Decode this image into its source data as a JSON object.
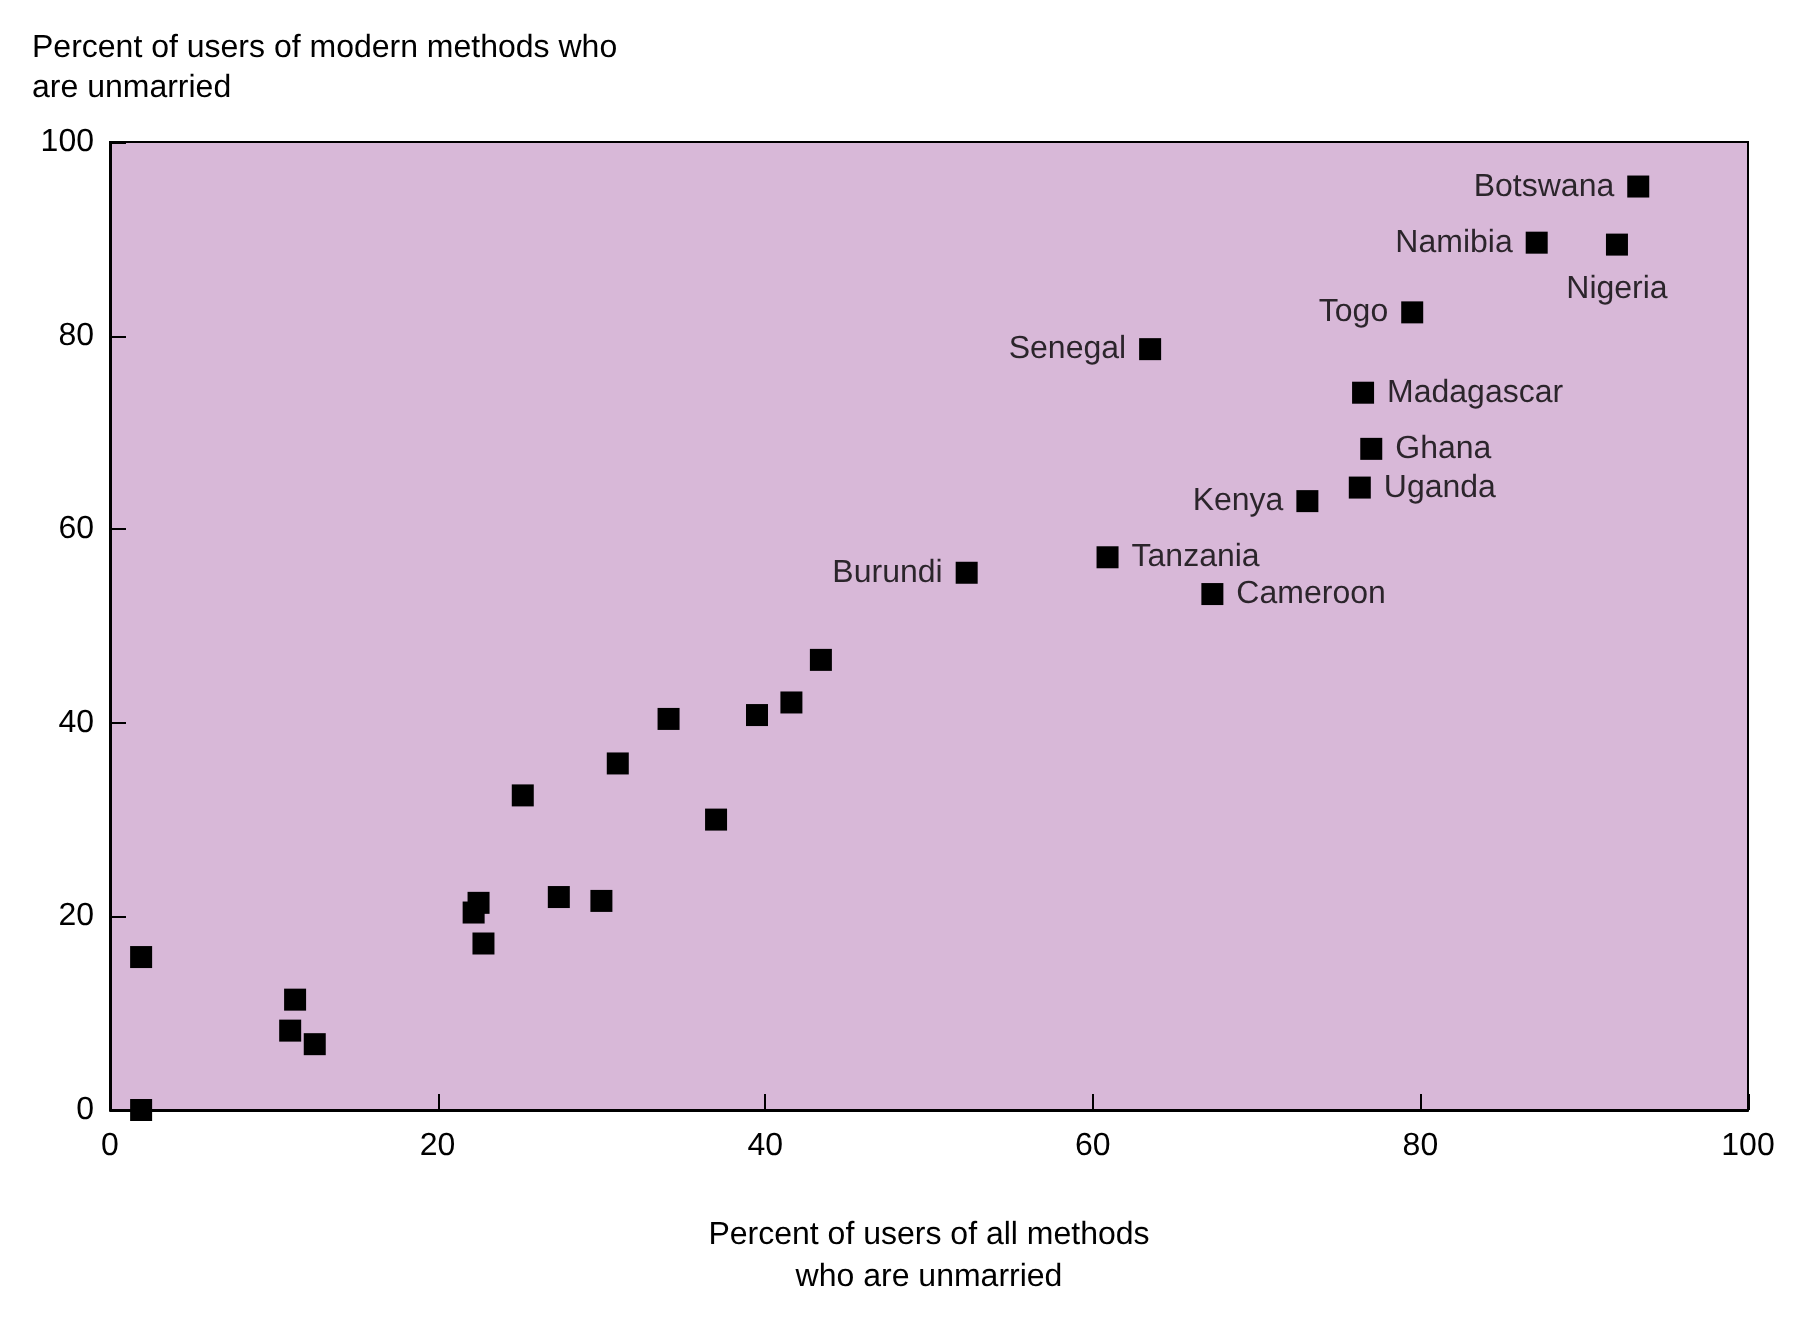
{
  "chart_data": {
    "type": "scatter",
    "xlabel": "Percent of users of all methods who are unmarried",
    "ylabel": "Percent of users of modern methods who are unmarried",
    "x": [
      1.9,
      1.9,
      11.3,
      11.0,
      12.5,
      22.2,
      22.5,
      22.8,
      25.2,
      27.4,
      30.0,
      31.0,
      34.1,
      37.0,
      39.5,
      41.6,
      43.4,
      52.3,
      60.9,
      63.5,
      67.3,
      73.1,
      76.5,
      76.3,
      77.0,
      79.5,
      87.1,
      92.0,
      93.3
    ],
    "values": [
      15.8,
      0,
      11.4,
      8.2,
      6.8,
      20.4,
      21.4,
      17.2,
      32.5,
      22.0,
      21.6,
      35.8,
      40.4,
      30.0,
      40.8,
      42.1,
      46.5,
      55.5,
      57.1,
      78.6,
      53.3,
      62.9,
      74.1,
      64.3,
      68.3,
      82.4,
      89.6,
      89.4,
      95.4
    ],
    "color": "#000000",
    "marker": "square",
    "xlim": [
      0,
      100
    ],
    "xticks": [
      0,
      20,
      40,
      60,
      80,
      100
    ],
    "ylim": [
      0,
      100
    ],
    "yticks": [
      0,
      20,
      40,
      60,
      80,
      100
    ],
    "grid": false,
    "annotations": [
      {
        "text": "Burundi",
        "x": 52.3,
        "y": 55.5
      },
      {
        "text": "Tanzania",
        "x": 60.9,
        "y": 57.1
      },
      {
        "text": "Senegal",
        "x": 63.5,
        "y": 78.6
      },
      {
        "text": "Cameroon",
        "x": 67.3,
        "y": 53.3
      },
      {
        "text": "Kenya",
        "x": 73.1,
        "y": 62.9
      },
      {
        "text": "Madagascar",
        "x": 76.5,
        "y": 74.1
      },
      {
        "text": "Uganda",
        "x": 76.3,
        "y": 64.3
      },
      {
        "text": "Ghana",
        "x": 77.0,
        "y": 68.3
      },
      {
        "text": "Togo",
        "x": 79.5,
        "y": 82.4
      },
      {
        "text": "Namibia",
        "x": 87.1,
        "y": 89.6
      },
      {
        "text": "Nigeria",
        "x": 92.0,
        "y": 89.4
      },
      {
        "text": "Botswana",
        "x": 93.3,
        "y": 95.4
      }
    ]
  }
}
